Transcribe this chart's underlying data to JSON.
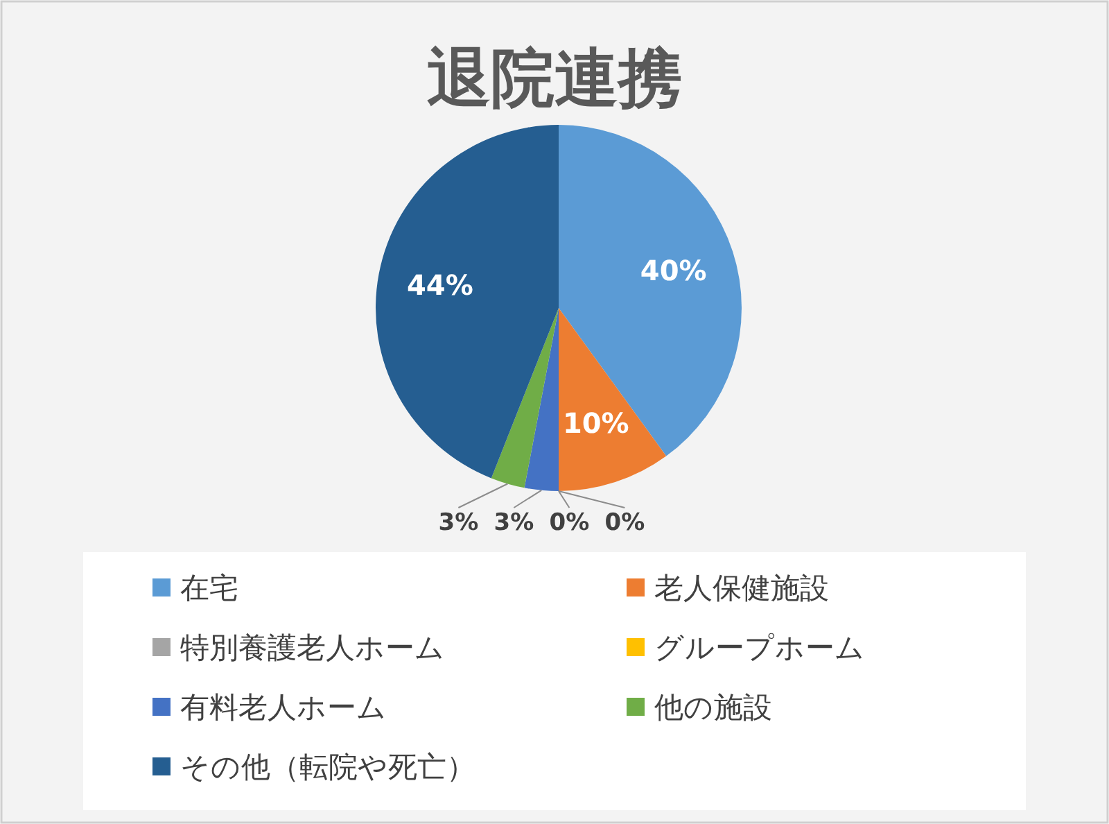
{
  "chart_data": {
    "type": "pie",
    "title": "退院連携",
    "categories": [
      "在宅",
      "老人保健施設",
      "特別養護老人ホーム",
      "グループホーム",
      "有料老人ホーム",
      "他の施設",
      "その他（転院や死亡）"
    ],
    "values": [
      40,
      10,
      0,
      0,
      3,
      3,
      44
    ],
    "colors": [
      "#5b9bd5",
      "#ed7d31",
      "#a5a5a5",
      "#ffc000",
      "#4472c4",
      "#70ad47",
      "#255e91"
    ],
    "value_labels": [
      "40%",
      "10%",
      "0%",
      "0%",
      "3%",
      "3%",
      "44%"
    ],
    "legend": "bottom"
  }
}
